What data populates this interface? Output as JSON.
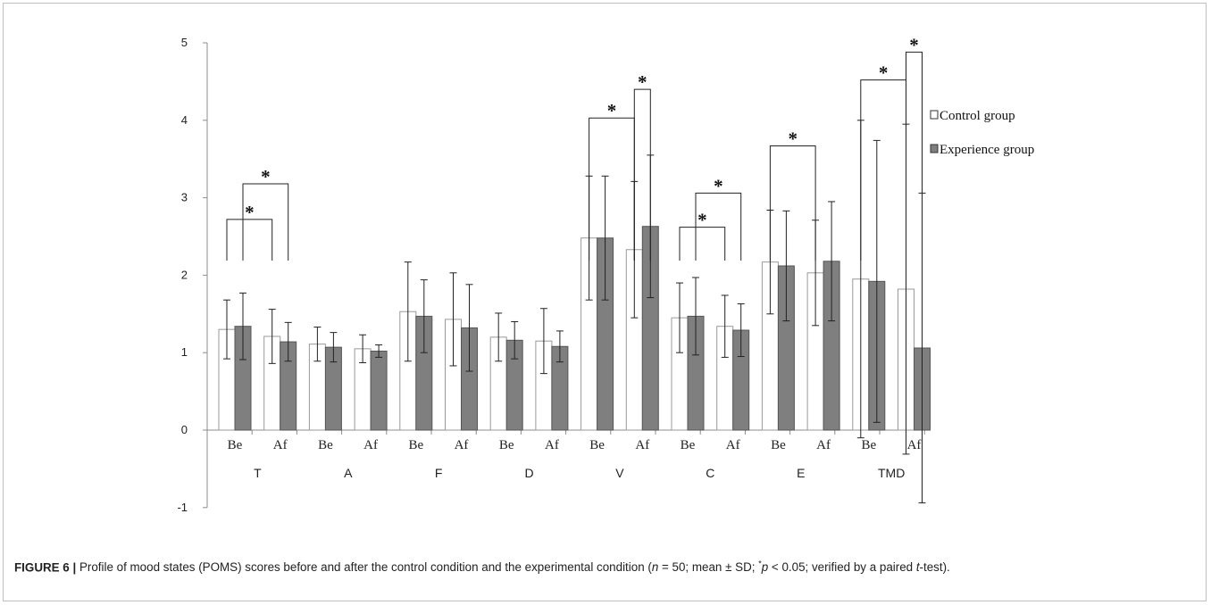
{
  "chart_data": {
    "type": "bar",
    "ylim": [
      -1,
      5
    ],
    "yticks": [
      -1,
      0,
      1,
      2,
      3,
      4,
      5
    ],
    "ytick_labels": [
      "-1",
      "0",
      "1",
      "2",
      "3",
      "4",
      "5"
    ],
    "groups": [
      "T",
      "A",
      "F",
      "D",
      "V",
      "C",
      "E",
      "TMD"
    ],
    "subcategories": [
      "Be",
      "Af"
    ],
    "categories": [
      "Be",
      "Af",
      "Be",
      "Af",
      "Be",
      "Af",
      "Be",
      "Af",
      "Be",
      "Af",
      "Be",
      "Af",
      "Be",
      "Af",
      "Be",
      "Af"
    ],
    "series": [
      {
        "name": "Control group",
        "color": "#ffffff",
        "values": [
          1.3,
          1.21,
          1.11,
          1.05,
          1.53,
          1.43,
          1.2,
          1.15,
          2.48,
          2.33,
          1.45,
          1.34,
          2.17,
          2.03,
          1.95,
          1.82
        ],
        "sd": [
          0.38,
          0.35,
          0.22,
          0.18,
          0.64,
          0.6,
          0.31,
          0.42,
          0.8,
          0.88,
          0.45,
          0.4,
          0.67,
          0.68,
          2.05,
          2.13
        ]
      },
      {
        "name": "Experience group",
        "color": "#7f7f7f",
        "values": [
          1.34,
          1.14,
          1.07,
          1.02,
          1.47,
          1.32,
          1.16,
          1.08,
          2.48,
          2.63,
          1.47,
          1.29,
          2.12,
          2.18,
          1.92,
          1.06
        ],
        "sd": [
          0.43,
          0.25,
          0.19,
          0.08,
          0.47,
          0.56,
          0.24,
          0.2,
          0.8,
          0.92,
          0.5,
          0.34,
          0.71,
          0.77,
          1.82,
          2.0
        ]
      }
    ],
    "significance": [
      {
        "label": "*",
        "group": "T",
        "from": "Be-Control group",
        "to": "Af-Control group",
        "height": 2.72
      },
      {
        "label": "*",
        "group": "T",
        "from": "Be-Experience group",
        "to": "Af-Experience group",
        "height": 3.18
      },
      {
        "label": "*",
        "group": "V",
        "from": "Be-Control group",
        "to": "Af-Control group",
        "height": 4.03
      },
      {
        "label": "*",
        "group": "V",
        "from": "Af-Control group",
        "to": "Af-Experience group",
        "height": 4.4
      },
      {
        "label": "*",
        "group": "C",
        "from": "Be-Control group",
        "to": "Af-Control group",
        "height": 2.62
      },
      {
        "label": "*",
        "group": "C",
        "from": "Be-Experience group",
        "to": "Af-Experience group",
        "height": 3.06
      },
      {
        "label": "*",
        "group": "E",
        "from": "Be-Control group",
        "to": "Af-Control group",
        "height": 3.67
      },
      {
        "label": "*",
        "group": "TMD",
        "from": "Be-Control group",
        "to": "Af-Control group",
        "height": 4.52
      },
      {
        "label": "*",
        "group": "TMD",
        "from": "Af-Control group",
        "to": "Af-Experience group",
        "height": 4.88
      }
    ],
    "legend_position": "right",
    "grid": false
  },
  "caption": {
    "figure_label": "FIGURE 6 |",
    "segments": [
      {
        "text": "Profile of mood states (POMS) scores before and after the control condition and the experimental condition (",
        "italic": false,
        "sup": false
      },
      {
        "text": "n",
        "italic": true,
        "sup": false
      },
      {
        "text": " = 50; mean ± SD; ",
        "italic": false,
        "sup": false
      },
      {
        "text": "*",
        "italic": false,
        "sup": true
      },
      {
        "text": "p",
        "italic": true,
        "sup": false
      },
      {
        "text": " < 0.05; verified by a paired ",
        "italic": false,
        "sup": false
      },
      {
        "text": "t",
        "italic": true,
        "sup": false
      },
      {
        "text": "-test).",
        "italic": false,
        "sup": false
      }
    ]
  }
}
